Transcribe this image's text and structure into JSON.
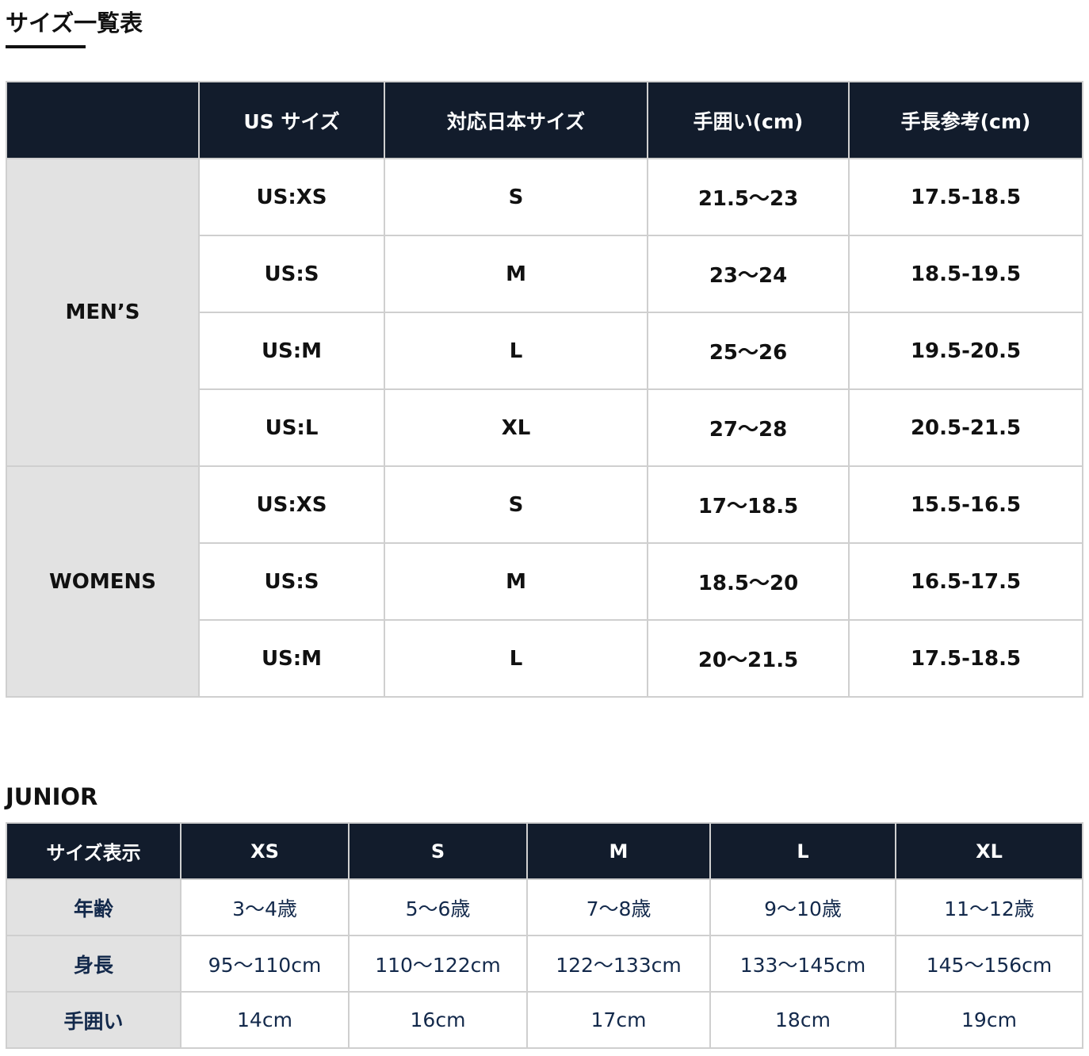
{
  "title": "サイズ一覧表",
  "main_table": {
    "headers": [
      "",
      "US サイズ",
      "対応日本サイズ",
      "手囲い(cm)",
      "手長参考(cm)"
    ],
    "groups": [
      {
        "label": "MEN’S",
        "rows": [
          [
            "US:XS",
            "S",
            "21.5〜23",
            "17.5-18.5"
          ],
          [
            "US:S",
            "M",
            "23〜24",
            "18.5-19.5"
          ],
          [
            "US:M",
            "L",
            "25〜26",
            "19.5-20.5"
          ],
          [
            "US:L",
            "XL",
            "27〜28",
            "20.5-21.5"
          ]
        ]
      },
      {
        "label": "WOMENS",
        "rows": [
          [
            "US:XS",
            "S",
            "17〜18.5",
            "15.5-16.5"
          ],
          [
            "US:S",
            "M",
            "18.5〜20",
            "16.5-17.5"
          ],
          [
            "US:M",
            "L",
            "20〜21.5",
            "17.5-18.5"
          ]
        ]
      }
    ]
  },
  "junior": {
    "label": "JUNIOR",
    "headers": [
      "サイズ表示",
      "XS",
      "S",
      "M",
      "L",
      "XL"
    ],
    "rows": [
      [
        "年齢",
        "3〜4歳",
        "5〜6歳",
        "7〜8歳",
        "9〜10歳",
        "11〜12歳"
      ],
      [
        "身長",
        "95〜110cm",
        "110〜122cm",
        "122〜133cm",
        "133〜145cm",
        "145〜156cm"
      ],
      [
        "手囲い",
        "14cm",
        "16cm",
        "17cm",
        "18cm",
        "19cm"
      ]
    ]
  },
  "colors": {
    "header_bg": "#121c2c",
    "group_bg": "#e2e2e2",
    "junior_text": "#13294b"
  }
}
